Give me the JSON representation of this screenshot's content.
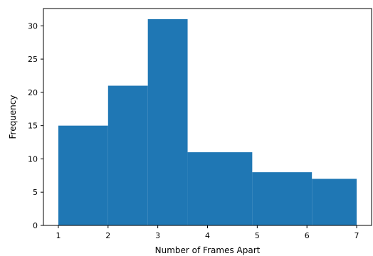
{
  "chart_data": {
    "type": "bar",
    "histogram": true,
    "bins": [
      {
        "start": 1.0,
        "end": 2.0,
        "value": 15
      },
      {
        "start": 2.0,
        "end": 2.8,
        "value": 21
      },
      {
        "start": 2.8,
        "end": 3.6,
        "value": 31
      },
      {
        "start": 3.6,
        "end": 4.9,
        "value": 11
      },
      {
        "start": 4.9,
        "end": 6.1,
        "value": 8
      },
      {
        "start": 6.1,
        "end": 7.0,
        "value": 7
      }
    ],
    "title": "",
    "xlabel": "Number of Frames Apart",
    "ylabel": "Frequency",
    "xticks": [
      1,
      2,
      3,
      4,
      5,
      6,
      7
    ],
    "yticks": [
      0,
      5,
      10,
      15,
      20,
      25,
      30
    ],
    "xlim": [
      0.7,
      7.3
    ],
    "ylim": [
      0,
      32.6
    ],
    "bar_color": "#1f77b4",
    "grid": false
  }
}
